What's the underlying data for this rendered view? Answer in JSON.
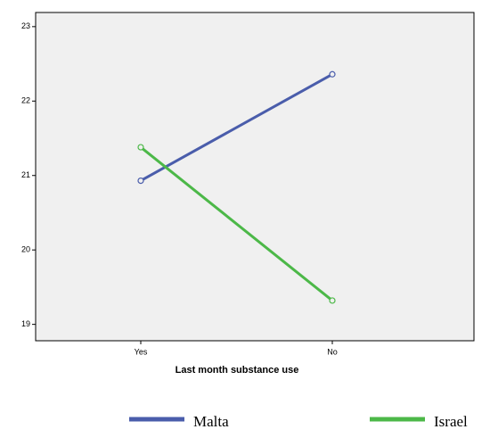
{
  "chart_data": {
    "type": "line",
    "x_label": "Last month substance use",
    "categories": [
      "Yes",
      "No"
    ],
    "series": [
      {
        "name": "Malta",
        "color": "#4a5dab",
        "values": [
          20.93,
          22.36
        ]
      },
      {
        "name": "Israel",
        "color": "#4cb848",
        "values": [
          21.38,
          19.32
        ]
      }
    ],
    "ylim": [
      18.78,
      23.19
    ],
    "yticks": [
      19,
      20,
      21,
      22,
      23
    ]
  }
}
